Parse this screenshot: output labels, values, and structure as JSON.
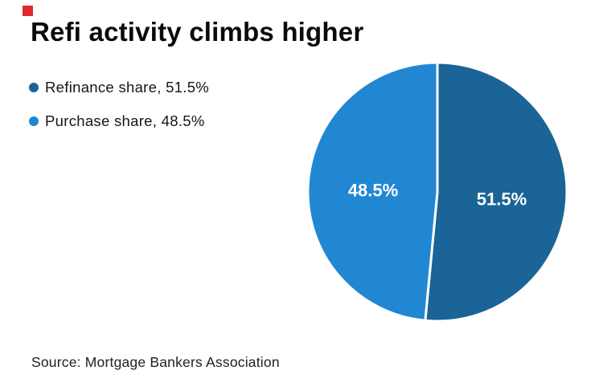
{
  "brand": {
    "logo_color": "#e0282e"
  },
  "title": "Refi activity climbs higher",
  "legend": [
    {
      "label": "Refinance share, 51.5%",
      "color": "#1a6497"
    },
    {
      "label": "Purchase share, 48.5%",
      "color": "#2287d3"
    }
  ],
  "source": "Source: Mortgage Bankers Association",
  "chart_data": {
    "type": "pie",
    "title": "Refi activity climbs higher",
    "slices": [
      {
        "label": "Refinance share",
        "value": 51.5,
        "display": "51.5%",
        "color": "#1a6497"
      },
      {
        "label": "Purchase share",
        "value": 48.5,
        "display": "48.5%",
        "color": "#2287d3"
      }
    ],
    "start_angle_deg": 0,
    "direction": "clockwise",
    "divider_color": "#ffffff",
    "legend_position": "top-left",
    "background": "#ffffff",
    "source": "Source: Mortgage Bankers Association"
  }
}
